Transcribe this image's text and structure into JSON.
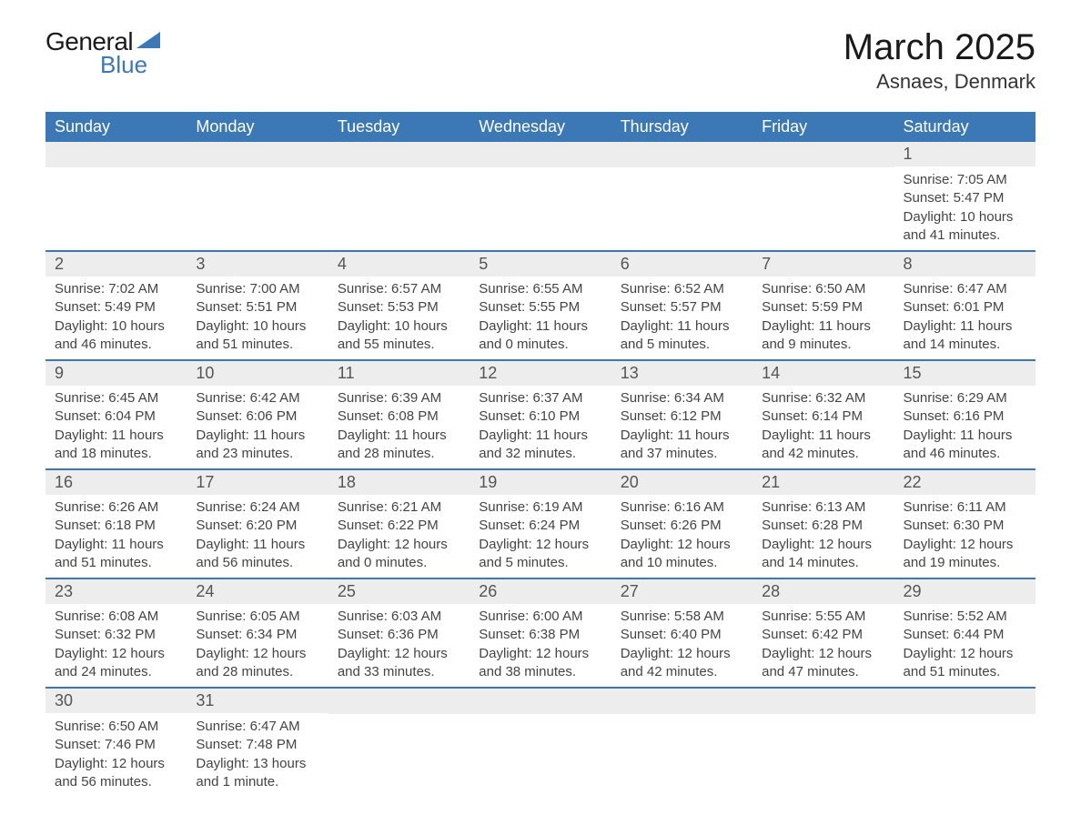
{
  "logo": {
    "text_general": "General",
    "text_blue": "Blue",
    "triangle_color": "#3b78b5"
  },
  "title": {
    "month": "March 2025",
    "location": "Asnaes, Denmark"
  },
  "colors": {
    "header_bg": "#3b78b5",
    "header_text": "#ffffff",
    "day_number_bg": "#ededed",
    "text": "#333333",
    "row_border": "#3b78b5"
  },
  "day_headers": [
    "Sunday",
    "Monday",
    "Tuesday",
    "Wednesday",
    "Thursday",
    "Friday",
    "Saturday"
  ],
  "weeks": [
    [
      null,
      null,
      null,
      null,
      null,
      null,
      {
        "day": "1",
        "sunrise": "Sunrise: 7:05 AM",
        "sunset": "Sunset: 5:47 PM",
        "daylight1": "Daylight: 10 hours",
        "daylight2": "and 41 minutes."
      }
    ],
    [
      {
        "day": "2",
        "sunrise": "Sunrise: 7:02 AM",
        "sunset": "Sunset: 5:49 PM",
        "daylight1": "Daylight: 10 hours",
        "daylight2": "and 46 minutes."
      },
      {
        "day": "3",
        "sunrise": "Sunrise: 7:00 AM",
        "sunset": "Sunset: 5:51 PM",
        "daylight1": "Daylight: 10 hours",
        "daylight2": "and 51 minutes."
      },
      {
        "day": "4",
        "sunrise": "Sunrise: 6:57 AM",
        "sunset": "Sunset: 5:53 PM",
        "daylight1": "Daylight: 10 hours",
        "daylight2": "and 55 minutes."
      },
      {
        "day": "5",
        "sunrise": "Sunrise: 6:55 AM",
        "sunset": "Sunset: 5:55 PM",
        "daylight1": "Daylight: 11 hours",
        "daylight2": "and 0 minutes."
      },
      {
        "day": "6",
        "sunrise": "Sunrise: 6:52 AM",
        "sunset": "Sunset: 5:57 PM",
        "daylight1": "Daylight: 11 hours",
        "daylight2": "and 5 minutes."
      },
      {
        "day": "7",
        "sunrise": "Sunrise: 6:50 AM",
        "sunset": "Sunset: 5:59 PM",
        "daylight1": "Daylight: 11 hours",
        "daylight2": "and 9 minutes."
      },
      {
        "day": "8",
        "sunrise": "Sunrise: 6:47 AM",
        "sunset": "Sunset: 6:01 PM",
        "daylight1": "Daylight: 11 hours",
        "daylight2": "and 14 minutes."
      }
    ],
    [
      {
        "day": "9",
        "sunrise": "Sunrise: 6:45 AM",
        "sunset": "Sunset: 6:04 PM",
        "daylight1": "Daylight: 11 hours",
        "daylight2": "and 18 minutes."
      },
      {
        "day": "10",
        "sunrise": "Sunrise: 6:42 AM",
        "sunset": "Sunset: 6:06 PM",
        "daylight1": "Daylight: 11 hours",
        "daylight2": "and 23 minutes."
      },
      {
        "day": "11",
        "sunrise": "Sunrise: 6:39 AM",
        "sunset": "Sunset: 6:08 PM",
        "daylight1": "Daylight: 11 hours",
        "daylight2": "and 28 minutes."
      },
      {
        "day": "12",
        "sunrise": "Sunrise: 6:37 AM",
        "sunset": "Sunset: 6:10 PM",
        "daylight1": "Daylight: 11 hours",
        "daylight2": "and 32 minutes."
      },
      {
        "day": "13",
        "sunrise": "Sunrise: 6:34 AM",
        "sunset": "Sunset: 6:12 PM",
        "daylight1": "Daylight: 11 hours",
        "daylight2": "and 37 minutes."
      },
      {
        "day": "14",
        "sunrise": "Sunrise: 6:32 AM",
        "sunset": "Sunset: 6:14 PM",
        "daylight1": "Daylight: 11 hours",
        "daylight2": "and 42 minutes."
      },
      {
        "day": "15",
        "sunrise": "Sunrise: 6:29 AM",
        "sunset": "Sunset: 6:16 PM",
        "daylight1": "Daylight: 11 hours",
        "daylight2": "and 46 minutes."
      }
    ],
    [
      {
        "day": "16",
        "sunrise": "Sunrise: 6:26 AM",
        "sunset": "Sunset: 6:18 PM",
        "daylight1": "Daylight: 11 hours",
        "daylight2": "and 51 minutes."
      },
      {
        "day": "17",
        "sunrise": "Sunrise: 6:24 AM",
        "sunset": "Sunset: 6:20 PM",
        "daylight1": "Daylight: 11 hours",
        "daylight2": "and 56 minutes."
      },
      {
        "day": "18",
        "sunrise": "Sunrise: 6:21 AM",
        "sunset": "Sunset: 6:22 PM",
        "daylight1": "Daylight: 12 hours",
        "daylight2": "and 0 minutes."
      },
      {
        "day": "19",
        "sunrise": "Sunrise: 6:19 AM",
        "sunset": "Sunset: 6:24 PM",
        "daylight1": "Daylight: 12 hours",
        "daylight2": "and 5 minutes."
      },
      {
        "day": "20",
        "sunrise": "Sunrise: 6:16 AM",
        "sunset": "Sunset: 6:26 PM",
        "daylight1": "Daylight: 12 hours",
        "daylight2": "and 10 minutes."
      },
      {
        "day": "21",
        "sunrise": "Sunrise: 6:13 AM",
        "sunset": "Sunset: 6:28 PM",
        "daylight1": "Daylight: 12 hours",
        "daylight2": "and 14 minutes."
      },
      {
        "day": "22",
        "sunrise": "Sunrise: 6:11 AM",
        "sunset": "Sunset: 6:30 PM",
        "daylight1": "Daylight: 12 hours",
        "daylight2": "and 19 minutes."
      }
    ],
    [
      {
        "day": "23",
        "sunrise": "Sunrise: 6:08 AM",
        "sunset": "Sunset: 6:32 PM",
        "daylight1": "Daylight: 12 hours",
        "daylight2": "and 24 minutes."
      },
      {
        "day": "24",
        "sunrise": "Sunrise: 6:05 AM",
        "sunset": "Sunset: 6:34 PM",
        "daylight1": "Daylight: 12 hours",
        "daylight2": "and 28 minutes."
      },
      {
        "day": "25",
        "sunrise": "Sunrise: 6:03 AM",
        "sunset": "Sunset: 6:36 PM",
        "daylight1": "Daylight: 12 hours",
        "daylight2": "and 33 minutes."
      },
      {
        "day": "26",
        "sunrise": "Sunrise: 6:00 AM",
        "sunset": "Sunset: 6:38 PM",
        "daylight1": "Daylight: 12 hours",
        "daylight2": "and 38 minutes."
      },
      {
        "day": "27",
        "sunrise": "Sunrise: 5:58 AM",
        "sunset": "Sunset: 6:40 PM",
        "daylight1": "Daylight: 12 hours",
        "daylight2": "and 42 minutes."
      },
      {
        "day": "28",
        "sunrise": "Sunrise: 5:55 AM",
        "sunset": "Sunset: 6:42 PM",
        "daylight1": "Daylight: 12 hours",
        "daylight2": "and 47 minutes."
      },
      {
        "day": "29",
        "sunrise": "Sunrise: 5:52 AM",
        "sunset": "Sunset: 6:44 PM",
        "daylight1": "Daylight: 12 hours",
        "daylight2": "and 51 minutes."
      }
    ],
    [
      {
        "day": "30",
        "sunrise": "Sunrise: 6:50 AM",
        "sunset": "Sunset: 7:46 PM",
        "daylight1": "Daylight: 12 hours",
        "daylight2": "and 56 minutes."
      },
      {
        "day": "31",
        "sunrise": "Sunrise: 6:47 AM",
        "sunset": "Sunset: 7:48 PM",
        "daylight1": "Daylight: 13 hours",
        "daylight2": "and 1 minute."
      },
      null,
      null,
      null,
      null,
      null
    ]
  ]
}
